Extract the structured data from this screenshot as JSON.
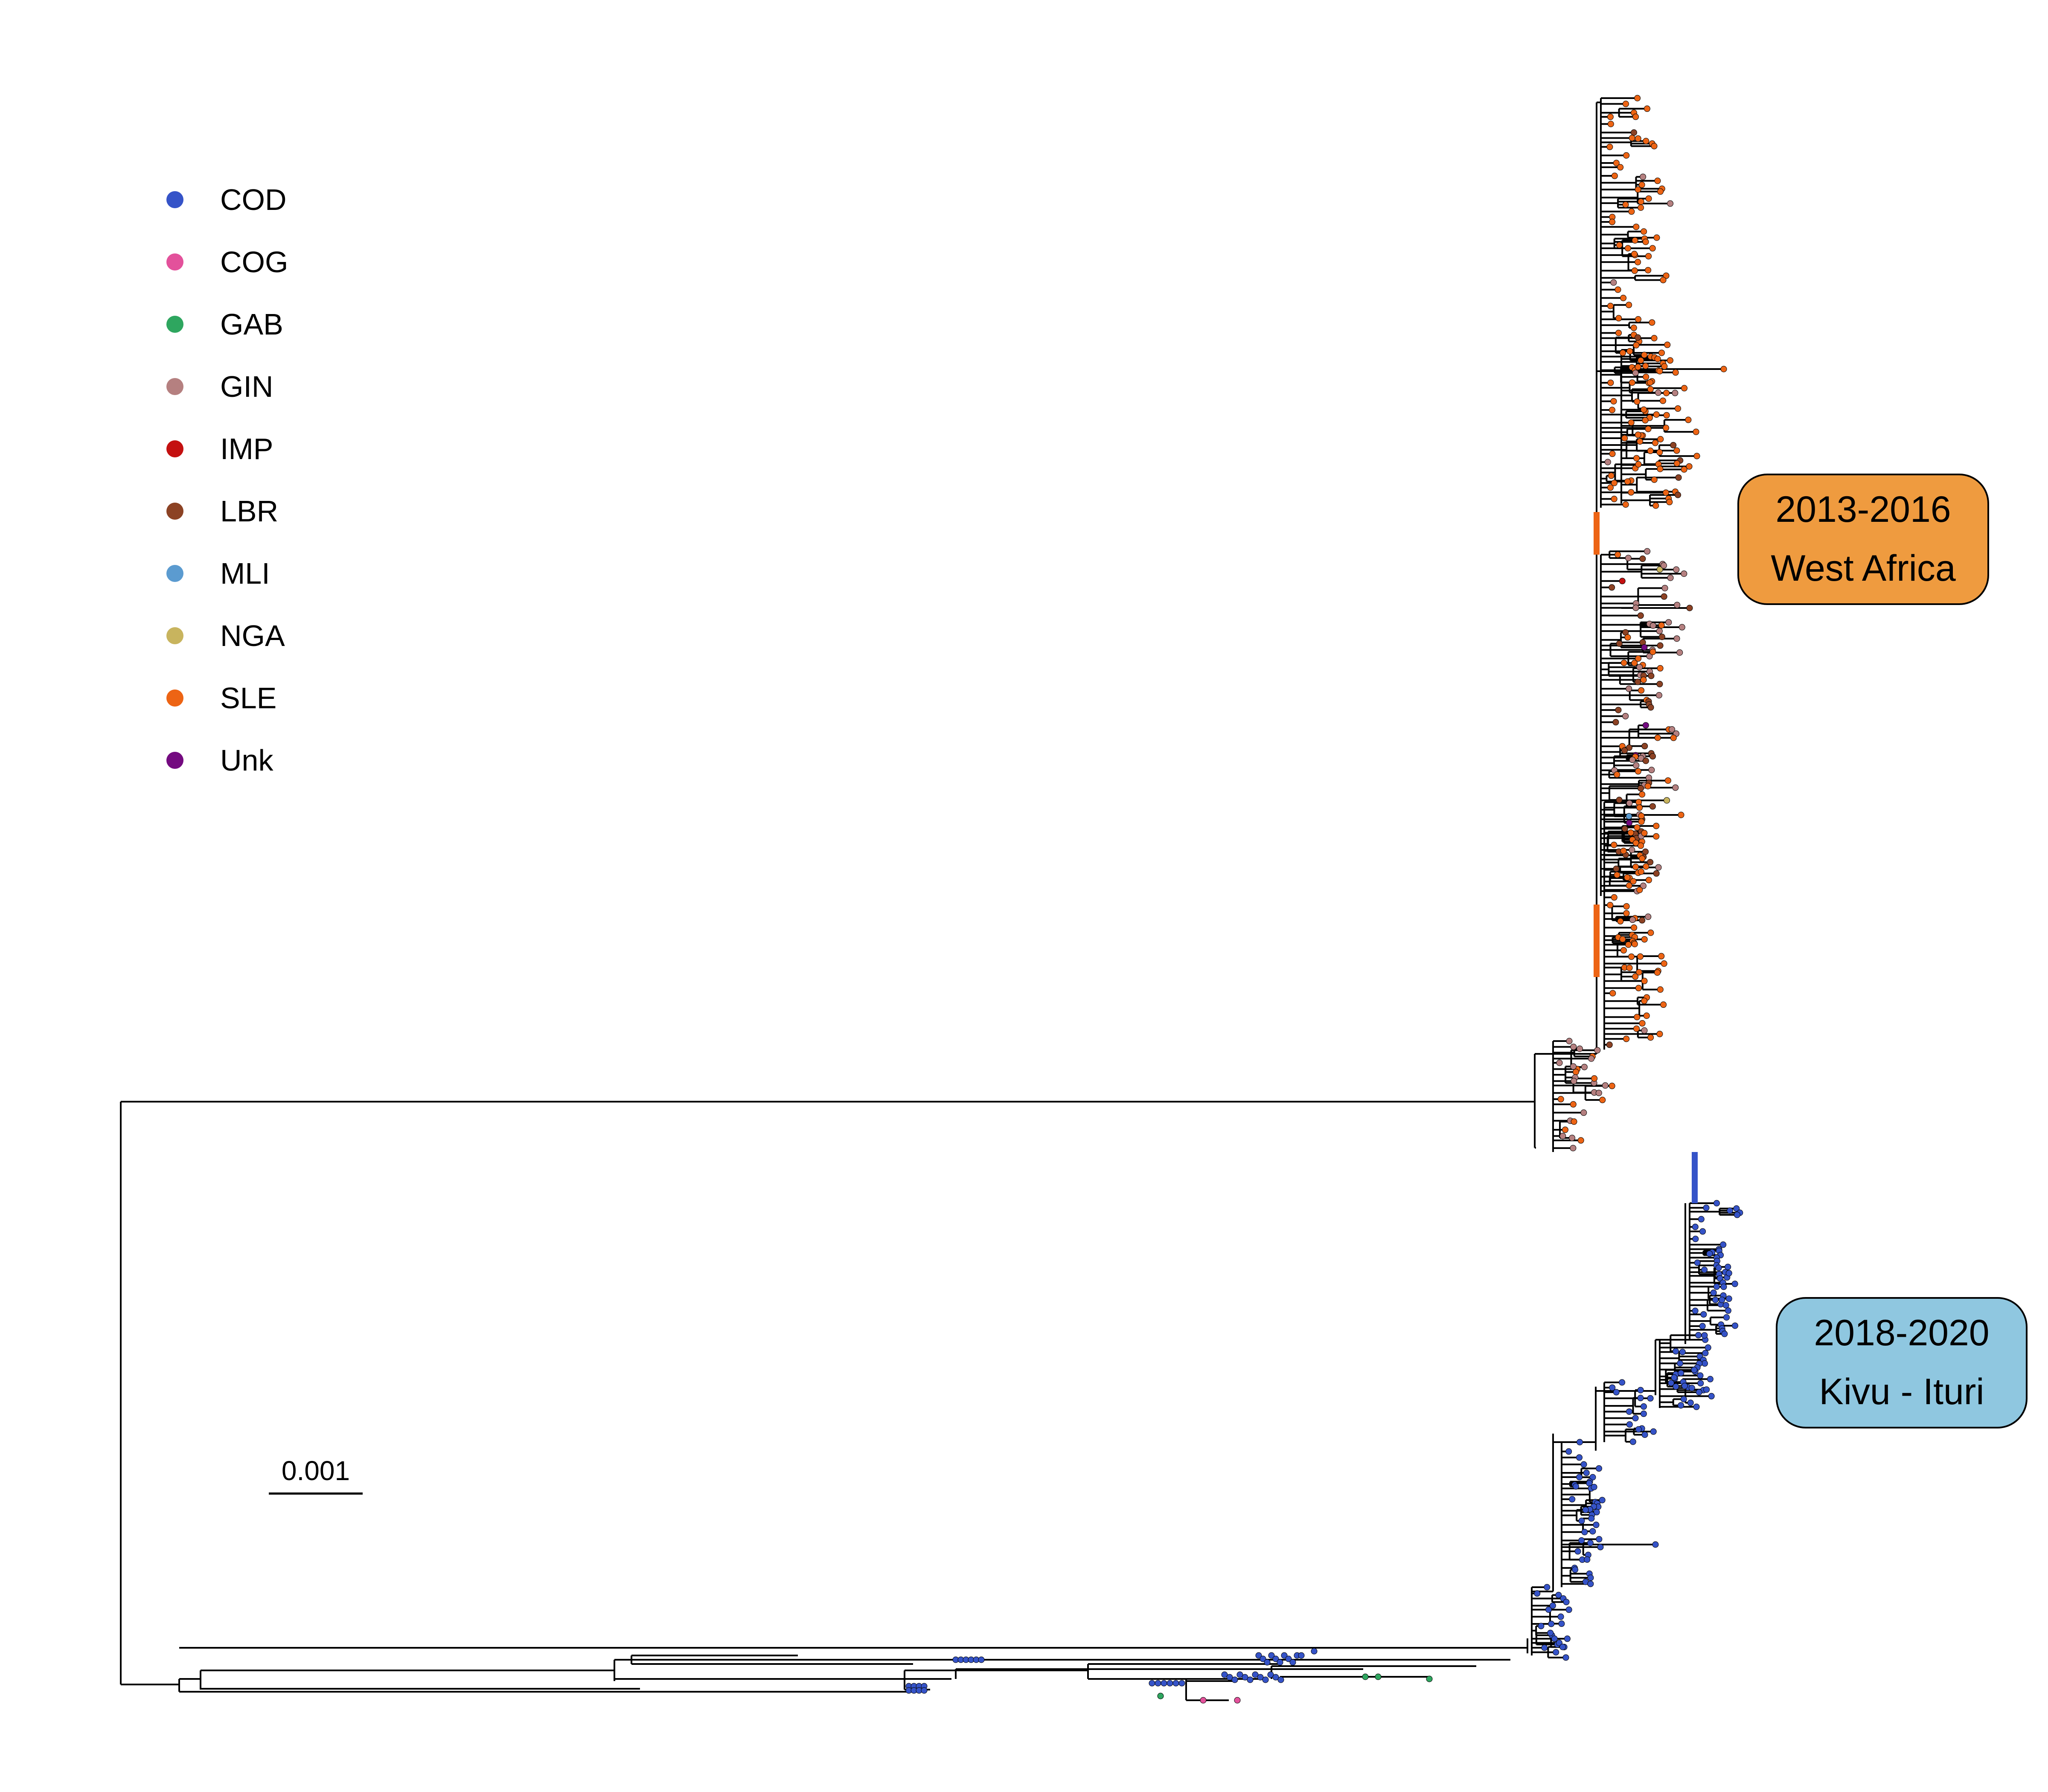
{
  "legend": [
    {
      "code": "COD",
      "color": "#3553c8"
    },
    {
      "code": "COG",
      "color": "#e3519b"
    },
    {
      "code": "GAB",
      "color": "#2ea65f"
    },
    {
      "code": "GIN",
      "color": "#b58080"
    },
    {
      "code": "IMP",
      "color": "#c41010"
    },
    {
      "code": "LBR",
      "color": "#8c4224"
    },
    {
      "code": "MLI",
      "color": "#5b9bd0"
    },
    {
      "code": "NGA",
      "color": "#c8b45e"
    },
    {
      "code": "SLE",
      "color": "#ed6414"
    },
    {
      "code": "Unk",
      "color": "#740a80"
    }
  ],
  "scale_bar": {
    "label": "0.001"
  },
  "clades": {
    "west_africa": {
      "line1": "2013-2016",
      "line2": "West Africa",
      "color": "#ef9b3f"
    },
    "kivu_ituri": {
      "line1": "2018-2020",
      "line2": "Kivu - Ituri",
      "color": "#8fc7e0"
    }
  },
  "tree": {
    "branch_color": "#000000"
  }
}
